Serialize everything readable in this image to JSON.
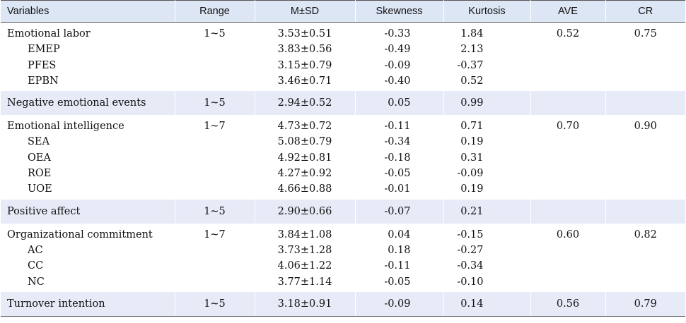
{
  "headers": {
    "variables": "Variables",
    "range": "Range",
    "msd": "M±SD",
    "skewness": "Skewness",
    "kurtosis": "Kurtosis",
    "ave": "AVE",
    "cr": "CR"
  },
  "groups": [
    {
      "label": "Emotional labor",
      "range": "1~5",
      "msd": "3.53±0.51",
      "skewness": "-0.33",
      "kurtosis": "1.84",
      "ave": "0.52",
      "cr": "0.75",
      "sub": [
        {
          "label": "EMEP",
          "msd": "3.83±0.56",
          "skewness": "-0.49",
          "kurtosis": "2.13"
        },
        {
          "label": "PFES",
          "msd": "3.15±0.79",
          "skewness": "-0.09",
          "kurtosis": "-0.37"
        },
        {
          "label": "EPBN",
          "msd": "3.46±0.71",
          "skewness": "-0.40",
          "kurtosis": "0.52"
        }
      ]
    },
    {
      "label": "Negative emotional events",
      "range": "1~5",
      "msd": "2.94±0.52",
      "skewness": "0.05",
      "kurtosis": "0.99",
      "ave": "",
      "cr": ""
    },
    {
      "label": "Emotional intelligence",
      "range": "1~7",
      "msd": "4.73±0.72",
      "skewness": "-0.11",
      "kurtosis": "0.71",
      "ave": "0.70",
      "cr": "0.90",
      "sub": [
        {
          "label": "SEA",
          "msd": "5.08±0.79",
          "skewness": "-0.34",
          "kurtosis": "0.19"
        },
        {
          "label": "OEA",
          "msd": "4.92±0.81",
          "skewness": "-0.18",
          "kurtosis": "0.31"
        },
        {
          "label": "ROE",
          "msd": "4.27±0.92",
          "skewness": "-0.05",
          "kurtosis": "-0.09"
        },
        {
          "label": "UOE",
          "msd": "4.66±0.88",
          "skewness": "-0.01",
          "kurtosis": "0.19"
        }
      ]
    },
    {
      "label": "Positive affect",
      "range": "1~5",
      "msd": "2.90±0.66",
      "skewness": "-0.07",
      "kurtosis": "0.21",
      "ave": "",
      "cr": ""
    },
    {
      "label": "Organizational commitment",
      "range": "1~7",
      "msd": "3.84±1.08",
      "skewness": "0.04",
      "kurtosis": "-0.15",
      "ave": "0.60",
      "cr": "0.82",
      "sub": [
        {
          "label": "AC",
          "msd": "3.73±1.28",
          "skewness": "0.18",
          "kurtosis": "-0.27"
        },
        {
          "label": "CC",
          "msd": "4.06±1.22",
          "skewness": "-0.11",
          "kurtosis": "-0.34"
        },
        {
          "label": "NC",
          "msd": "3.77±1.14",
          "skewness": "-0.05",
          "kurtosis": "-0.10"
        }
      ]
    },
    {
      "label": "Turnover intention",
      "range": "1~5",
      "msd": "3.18±0.91",
      "skewness": "-0.09",
      "kurtosis": "0.14",
      "ave": "0.56",
      "cr": "0.79"
    }
  ]
}
